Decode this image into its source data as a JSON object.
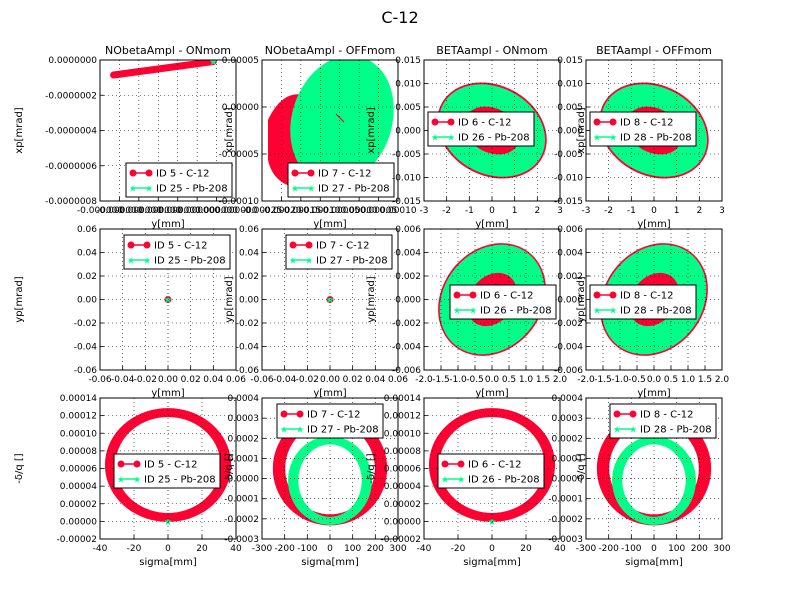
{
  "figure": {
    "title": "C-12",
    "colors": {
      "c12": "#ff0033",
      "pb208": "#00ff88",
      "grid": "#000000"
    }
  },
  "chart_data": [
    {
      "type": "scatter",
      "title": "NObetaAmpl - ONmom",
      "xlabel": "y[mm]",
      "ylabel": "xp[mrad]",
      "xlim": [
        -1e-06,
        2e-07
      ],
      "ylim": [
        -9e-06,
        1e-07
      ],
      "yticks": [
        "0.0000000",
        "-0.0000002",
        "-0.0000004",
        "-0.0000006",
        "-0.0000008"
      ],
      "xticks": [
        "-0.000000",
        "-0.000000",
        "-0.000000",
        "-0.000000",
        "-0.000000",
        "-0.000000",
        "0.000000",
        "0.000000"
      ],
      "grid": true,
      "legend": {
        "placement": "lower-right",
        "entries": [
          "ID 5 - C-12",
          "ID 25 - Pb-208"
        ]
      },
      "series": [
        {
          "name": "ID 5 - C-12",
          "shape": "line",
          "from": [
            -8.8e-07,
            -8.7e-07
          ],
          "to": [
            0.0,
            0.0
          ]
        },
        {
          "name": "ID 25 - Pb-208",
          "shape": "point",
          "at": [
            0.0,
            0.0
          ]
        }
      ]
    },
    {
      "type": "scatter",
      "title": "NObetaAmpl - OFFmom",
      "xlabel": "y[mm]",
      "ylabel": "xp[mrad]",
      "xlim": [
        -0.0003,
        0.0001
      ],
      "ylim": [
        -0.00012,
        6e-05
      ],
      "yticks": [
        "0.00005",
        "0.00000",
        "-0.00005",
        "-0.00010"
      ],
      "xticks": [
        "-0.00025",
        "-0.00020",
        "-0.00015",
        "-0.00010",
        "-0.00005",
        "0.00000",
        "0.00005",
        "0.00010"
      ],
      "grid": true,
      "legend": {
        "placement": "lower-right",
        "entries": [
          "ID 7 - C-12",
          "ID 27 - Pb-208"
        ]
      },
      "series": [
        {
          "name": "ID 7 - C-12",
          "shape": "blob"
        },
        {
          "name": "ID 27 - Pb-208",
          "shape": "blob"
        }
      ]
    },
    {
      "type": "scatter",
      "title": "BETAampl - ONmom",
      "xlabel": "y[mm]",
      "ylabel": "xp[mrad]",
      "xlim": [
        -3,
        3
      ],
      "ylim": [
        -0.015,
        0.015
      ],
      "yticks": [
        "0.015",
        "0.010",
        "0.005",
        "0.000",
        "-0.005",
        "-0.010",
        "-0.015"
      ],
      "xticks": [
        "-3",
        "-2",
        "-1",
        "0",
        "1",
        "2",
        "3"
      ],
      "grid": true,
      "legend": {
        "placement": "left",
        "entries": [
          "ID 6 - C-12",
          "ID 26 - Pb-208"
        ]
      },
      "series": [
        {
          "name": "ID 6 - C-12",
          "shape": "ring",
          "outer_rx": 2.5,
          "outer_ry": 0.0095,
          "tilt_deg": 28
        },
        {
          "name": "ID 26 - Pb-208",
          "shape": "ring",
          "outer_rx": 2.45,
          "outer_ry": 0.0092,
          "inner_rx": 1.3,
          "inner_ry": 0.0047,
          "tilt_deg": 28
        }
      ]
    },
    {
      "type": "scatter",
      "title": "BETAampl - OFFmom",
      "xlabel": "y[mm]",
      "ylabel": "xp[mrad]",
      "xlim": [
        -3,
        3
      ],
      "ylim": [
        -0.015,
        0.015
      ],
      "yticks": [
        "0.015",
        "0.010",
        "0.005",
        "0.000",
        "-0.005",
        "-0.010",
        "-0.015"
      ],
      "xticks": [
        "-3",
        "-2",
        "-1",
        "0",
        "1",
        "2",
        "3"
      ],
      "grid": true,
      "legend": {
        "placement": "left",
        "entries": [
          "ID 8 - C-12",
          "ID 28 - Pb-208"
        ]
      },
      "series": [
        {
          "name": "ID 8 - C-12",
          "shape": "ring",
          "outer_rx": 2.5,
          "outer_ry": 0.0095,
          "tilt_deg": 28
        },
        {
          "name": "ID 28 - Pb-208",
          "shape": "ring",
          "outer_rx": 2.45,
          "outer_ry": 0.0092,
          "inner_rx": 1.3,
          "inner_ry": 0.0047,
          "tilt_deg": 28
        }
      ]
    },
    {
      "type": "scatter",
      "title": "",
      "xlabel": "y[mm]",
      "ylabel": "yp[mrad]",
      "xlim": [
        -0.06,
        0.06
      ],
      "ylim": [
        -0.06,
        0.06
      ],
      "yticks": [
        "0.06",
        "0.04",
        "0.02",
        "0.00",
        "-0.02",
        "-0.04",
        "-0.06"
      ],
      "xticks": [
        "-0.06",
        "-0.04",
        "-0.02",
        "0.00",
        "0.02",
        "0.04",
        "0.06"
      ],
      "grid": true,
      "legend": {
        "placement": "top-right",
        "entries": [
          "ID 5 - C-12",
          "ID 25 - Pb-208"
        ]
      },
      "series": [
        {
          "name": "ID 5 - C-12",
          "shape": "point",
          "at": [
            0.0,
            0.0
          ]
        },
        {
          "name": "ID 25 - Pb-208",
          "shape": "point",
          "at": [
            0.0,
            0.0
          ]
        }
      ]
    },
    {
      "type": "scatter",
      "title": "",
      "xlabel": "y[mm]",
      "ylabel": "yp[mrad]",
      "xlim": [
        -0.06,
        0.06
      ],
      "ylim": [
        -0.06,
        0.06
      ],
      "yticks": [
        "0.06",
        "0.04",
        "0.02",
        "0.00",
        "-0.02",
        "-0.04",
        "-0.06"
      ],
      "xticks": [
        "-0.06",
        "-0.04",
        "-0.02",
        "0.00",
        "0.02",
        "0.04",
        "0.06"
      ],
      "grid": true,
      "legend": {
        "placement": "top-right",
        "entries": [
          "ID 7 - C-12",
          "ID 27 - Pb-208"
        ]
      },
      "series": [
        {
          "name": "ID 7 - C-12",
          "shape": "point",
          "at": [
            0.0,
            0.0
          ]
        },
        {
          "name": "ID 27 - Pb-208",
          "shape": "point",
          "at": [
            0.0,
            0.0
          ]
        }
      ]
    },
    {
      "type": "scatter",
      "title": "",
      "xlabel": "y[mm]",
      "ylabel": "yp[mrad]",
      "xlim": [
        -2.0,
        2.0
      ],
      "ylim": [
        -0.006,
        0.006
      ],
      "yticks": [
        "0.006",
        "0.004",
        "0.002",
        "0.000",
        "-0.002",
        "-0.004",
        "-0.006"
      ],
      "xticks": [
        "-2.0",
        "-1.5",
        "-1.0",
        "-0.5",
        "0.0",
        "0.5",
        "1.0",
        "1.5",
        "2.0"
      ],
      "grid": true,
      "legend": {
        "placement": "center-right",
        "entries": [
          "ID 6 - C-12",
          "ID 26 - Pb-208"
        ]
      },
      "series": [
        {
          "name": "ID 6 - C-12",
          "shape": "ring",
          "outer_rx": 1.75,
          "outer_ry": 0.0042,
          "tilt_deg": -52
        },
        {
          "name": "ID 26 - Pb-208",
          "shape": "ring",
          "outer_rx": 1.72,
          "outer_ry": 0.0041,
          "inner_rx": 0.85,
          "inner_ry": 0.0019,
          "tilt_deg": -52
        }
      ]
    },
    {
      "type": "scatter",
      "title": "",
      "xlabel": "y[mm]",
      "ylabel": "yp[mrad]",
      "xlim": [
        -2.0,
        2.0
      ],
      "ylim": [
        -0.006,
        0.006
      ],
      "yticks": [
        "0.006",
        "0.004",
        "0.002",
        "0.000",
        "-0.002",
        "-0.004",
        "-0.006"
      ],
      "xticks": [
        "-2.0",
        "-1.5",
        "-1.0",
        "-0.5",
        "0.0",
        "0.5",
        "1.0",
        "1.5",
        "2.0"
      ],
      "grid": true,
      "legend": {
        "placement": "center-left",
        "entries": [
          "ID 8 - C-12",
          "ID 28 - Pb-208"
        ]
      },
      "series": [
        {
          "name": "ID 8 - C-12",
          "shape": "ring",
          "outer_rx": 1.75,
          "outer_ry": 0.0042,
          "tilt_deg": -52
        },
        {
          "name": "ID 28 - Pb-208",
          "shape": "ring",
          "outer_rx": 1.72,
          "outer_ry": 0.0041,
          "inner_rx": 0.85,
          "inner_ry": 0.0019,
          "tilt_deg": -52
        }
      ]
    },
    {
      "type": "scatter",
      "title": "",
      "xlabel": "sigma[mm]",
      "ylabel": "-δ/q []",
      "xlim": [
        -50,
        50
      ],
      "ylim": [
        -2e-05,
        0.00014
      ],
      "yticks": [
        "0.00014",
        "0.00012",
        "0.00010",
        "0.00008",
        "0.00006",
        "0.00004",
        "0.00002",
        "0.00000",
        "-0.00002"
      ],
      "xticks": [
        "-40",
        "-20",
        "0",
        "20",
        "40"
      ],
      "grid": true,
      "legend": {
        "placement": "center",
        "entries": [
          "ID 5 - C-12",
          "ID 25 - Pb-208"
        ]
      },
      "series": [
        {
          "name": "ID 5 - C-12",
          "shape": "ring",
          "cx": 0,
          "cy": 6.4e-05,
          "outer_rx": 46,
          "outer_ry": 6.4e-05,
          "inner_rx": 39,
          "inner_ry": 5.5e-05
        },
        {
          "name": "ID 25 - Pb-208",
          "shape": "point",
          "at": [
            0.0,
            0.0
          ]
        }
      ]
    },
    {
      "type": "scatter",
      "title": "",
      "xlabel": "sigma[mm]",
      "ylabel": "-δ/q []",
      "xlim": [
        -300,
        300
      ],
      "ylim": [
        -0.0003,
        0.0004
      ],
      "yticks": [
        "0.0004",
        "0.0003",
        "0.0002",
        "0.0001",
        "0.0000",
        "-0.0001",
        "-0.0002",
        "-0.0003"
      ],
      "xticks": [
        "-300",
        "-200",
        "-100",
        "0",
        "100",
        "200",
        "300"
      ],
      "grid": true,
      "legend": {
        "placement": "top-center",
        "entries": [
          "ID 7 - C-12",
          "ID 27 - Pb-208"
        ]
      },
      "series": [
        {
          "name": "ID 7 - C-12",
          "shape": "ring",
          "cx": 0,
          "cy": 5e-05,
          "outer_rx": 250,
          "outer_ry": 0.00028,
          "inner_rx": 200,
          "inner_ry": 0.00023
        },
        {
          "name": "ID 27 - Pb-208",
          "shape": "ring",
          "cx": 0,
          "cy": -1e-05,
          "outer_rx": 185,
          "outer_ry": 0.00022,
          "inner_rx": 140,
          "inner_ry": 0.00018
        }
      ]
    },
    {
      "type": "scatter",
      "title": "",
      "xlabel": "sigma[mm]",
      "ylabel": "-δ/q []",
      "xlim": [
        -50,
        50
      ],
      "ylim": [
        -2e-05,
        0.00014
      ],
      "yticks": [
        "0.00014",
        "0.00012",
        "0.00010",
        "0.00008",
        "0.00006",
        "0.00004",
        "0.00002",
        "0.00000",
        "-0.00002"
      ],
      "xticks": [
        "-40",
        "-20",
        "0",
        "20",
        "40"
      ],
      "grid": true,
      "legend": {
        "placement": "center",
        "entries": [
          "ID 6 - C-12",
          "ID 26 - Pb-208"
        ]
      },
      "series": [
        {
          "name": "ID 6 - C-12",
          "shape": "ring",
          "cx": 0,
          "cy": 6.4e-05,
          "outer_rx": 46,
          "outer_ry": 6.4e-05,
          "inner_rx": 39,
          "inner_ry": 5.5e-05
        },
        {
          "name": "ID 26 - Pb-208",
          "shape": "point",
          "at": [
            0.0,
            0.0
          ]
        }
      ]
    },
    {
      "type": "scatter",
      "title": "",
      "xlabel": "sigma[mm]",
      "ylabel": "-δ/q []",
      "xlim": [
        -300,
        300
      ],
      "ylim": [
        -0.0003,
        0.0004
      ],
      "yticks": [
        "0.0004",
        "0.0003",
        "0.0002",
        "0.0001",
        "0.0000",
        "-0.0001",
        "-0.0002",
        "-0.0003"
      ],
      "xticks": [
        "-300",
        "-200",
        "-100",
        "0",
        "100",
        "200",
        "300"
      ],
      "grid": true,
      "legend": {
        "placement": "top-right",
        "entries": [
          "ID 8 - C-12",
          "ID 28 - Pb-208"
        ]
      },
      "series": [
        {
          "name": "ID 8 - C-12",
          "shape": "ring",
          "cx": 0,
          "cy": 5e-05,
          "outer_rx": 250,
          "outer_ry": 0.00028,
          "inner_rx": 200,
          "inner_ry": 0.00023
        },
        {
          "name": "ID 28 - Pb-208",
          "shape": "ring",
          "cx": 0,
          "cy": -1e-05,
          "outer_rx": 185,
          "outer_ry": 0.00022,
          "inner_rx": 140,
          "inner_ry": 0.00018
        }
      ]
    }
  ]
}
